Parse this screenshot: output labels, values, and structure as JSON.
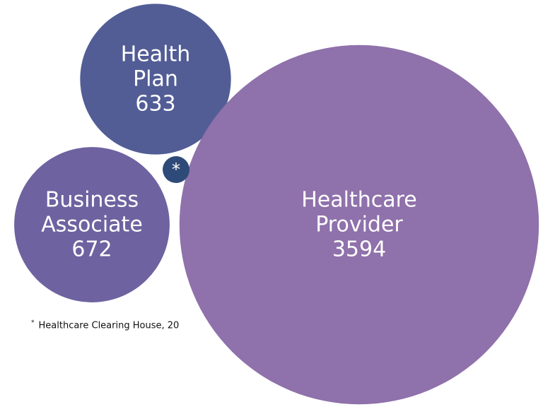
{
  "chart_data": {
    "type": "bubble",
    "categories": [
      "Health Plan",
      "Business Associate",
      "Healthcare Provider",
      "*"
    ],
    "values": [
      633,
      672,
      3594,
      20
    ],
    "colors": [
      "#525d96",
      "#6e63a0",
      "#8f71ab",
      "#2e4a78"
    ],
    "show_values": [
      true,
      true,
      true,
      false
    ],
    "note": "Healthcare Clearing House, 20"
  }
}
